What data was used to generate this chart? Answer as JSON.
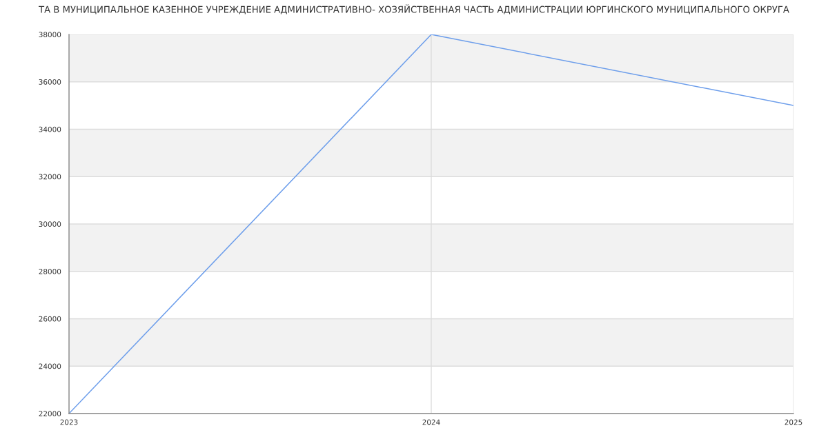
{
  "chart_data": {
    "type": "line",
    "title": "ТА В МУНИЦИПАЛЬНОЕ КАЗЕННОЕ УЧРЕЖДЕНИЕ АДМИНИСТРАТИВНО- ХОЗЯЙСТВЕННАЯ ЧАСТЬ АДМИНИСТРАЦИИ ЮРГИНСКОГО МУНИЦИПАЛЬНОГО ОКРУГА",
    "x": [
      2023,
      2024,
      2025
    ],
    "series": [
      {
        "color": "#6d9eeb",
        "values": [
          22000,
          38000,
          35000
        ]
      }
    ],
    "xlim": [
      2023,
      2025
    ],
    "xticks": [
      2023,
      2024,
      2025
    ],
    "ylim": [
      22000,
      38000
    ],
    "yticks": [
      22000,
      24000,
      26000,
      28000,
      30000,
      32000,
      34000,
      36000,
      38000
    ],
    "bands": [
      {
        "axis": "y",
        "from": 24000,
        "to": 26000,
        "color": "#f2f2f2"
      },
      {
        "axis": "y",
        "from": 28000,
        "to": 30000,
        "color": "#f2f2f2"
      },
      {
        "axis": "y",
        "from": 32000,
        "to": 34000,
        "color": "#f2f2f2"
      },
      {
        "axis": "y",
        "from": 36000,
        "to": 38000,
        "color": "#f2f2f2"
      }
    ],
    "grid": true
  }
}
